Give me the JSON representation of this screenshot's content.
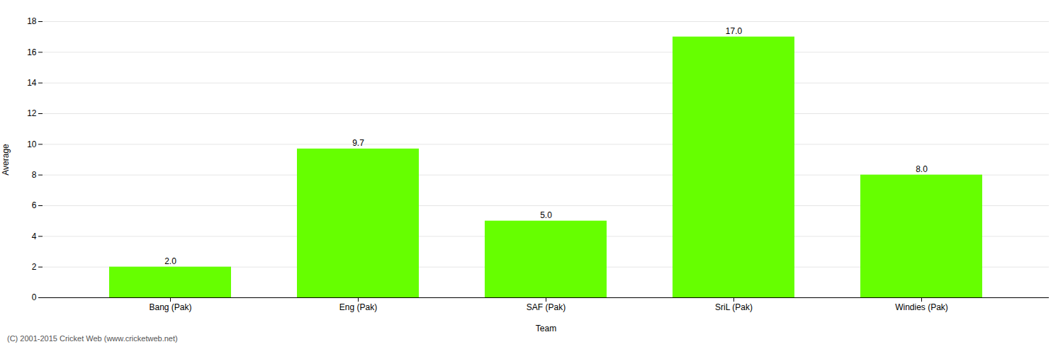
{
  "chart_data": {
    "type": "bar",
    "categories": [
      "Bang (Pak)",
      "Eng (Pak)",
      "SAF (Pak)",
      "SriL (Pak)",
      "Windies (Pak)"
    ],
    "values": [
      2.0,
      9.7,
      5.0,
      17.0,
      8.0
    ],
    "value_labels": [
      "2.0",
      "9.7",
      "5.0",
      "17.0",
      "8.0"
    ],
    "data_labels": true,
    "color": "#66ff00",
    "xlabel": "Team",
    "ylabel": "Average",
    "ylim": [
      0,
      18
    ],
    "yticks": [
      0,
      2,
      4,
      6,
      8,
      10,
      12,
      14,
      16,
      18
    ],
    "grid": true,
    "footer": "(C) 2001-2015 Cricket Web (www.cricketweb.net)"
  }
}
